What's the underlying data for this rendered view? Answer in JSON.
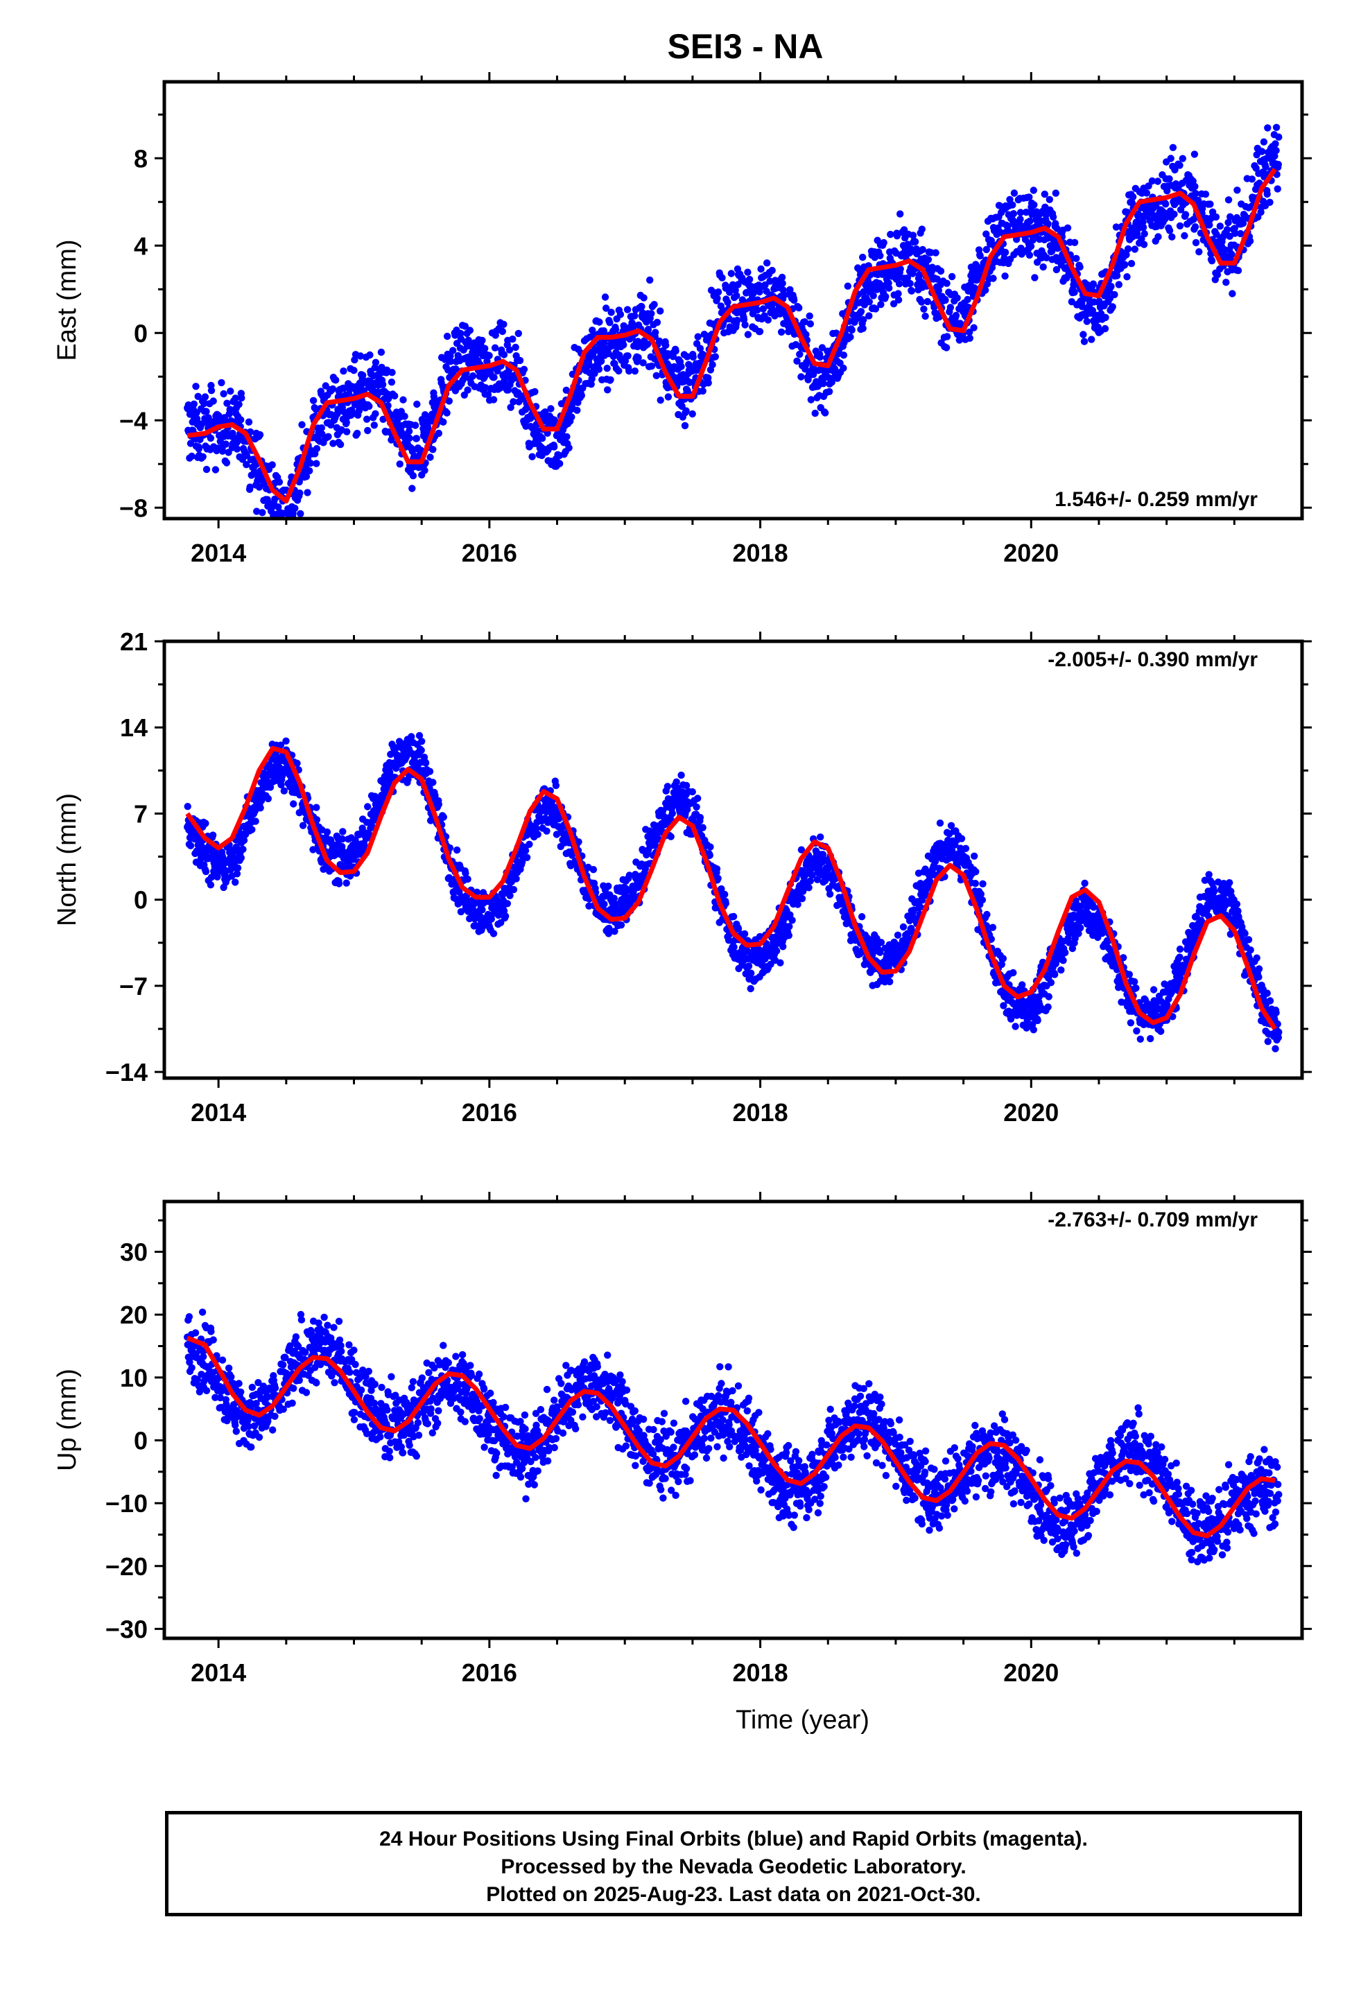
{
  "title": "SEI3 - NA",
  "footer": {
    "line1": "24 Hour Positions Using Final Orbits (blue) and Rapid Orbits (magenta).",
    "line2": "Processed by the Nevada Geodetic Laboratory.",
    "line3": "Plotted on 2025-Aug-23. Last data on 2021-Oct-30."
  },
  "colors": {
    "points": "#0000ff",
    "model": "#ff0000",
    "frame": "#000000"
  },
  "chart_data": [
    {
      "type": "scatter",
      "ylabel": "East (mm)",
      "xlabel": "",
      "xlim": [
        2013.6,
        2022.0
      ],
      "ylim": [
        -8.5,
        11.5
      ],
      "xticks": [
        2014,
        2016,
        2018,
        2020
      ],
      "yticks": [
        -8,
        -4,
        0,
        4,
        8
      ],
      "rate_text": "1.546+/- 0.259 mm/yr",
      "rate_position": "bottom-right",
      "model": {
        "x": [
          2013.77,
          2013.9,
          2014.0,
          2014.1,
          2014.2,
          2014.3,
          2014.4,
          2014.5,
          2014.6,
          2014.7,
          2014.8,
          2014.9,
          2015.0,
          2015.1,
          2015.2,
          2015.3,
          2015.4,
          2015.5,
          2015.6,
          2015.7,
          2015.8,
          2015.9,
          2016.0,
          2016.1,
          2016.2,
          2016.3,
          2016.4,
          2016.5,
          2016.6,
          2016.7,
          2016.8,
          2016.9,
          2017.0,
          2017.1,
          2017.2,
          2017.3,
          2017.4,
          2017.5,
          2017.6,
          2017.7,
          2017.8,
          2017.9,
          2018.0,
          2018.1,
          2018.2,
          2018.3,
          2018.4,
          2018.5,
          2018.6,
          2018.7,
          2018.8,
          2018.9,
          2019.0,
          2019.1,
          2019.2,
          2019.3,
          2019.4,
          2019.5,
          2019.6,
          2019.7,
          2019.8,
          2019.9,
          2020.0,
          2020.1,
          2020.2,
          2020.3,
          2020.4,
          2020.5,
          2020.6,
          2020.7,
          2020.8,
          2020.9,
          2021.0,
          2021.1,
          2021.2,
          2021.3,
          2021.4,
          2021.5,
          2021.6,
          2021.7,
          2021.8
        ],
        "y": [
          -4.7,
          -4.6,
          -4.3,
          -4.2,
          -4.6,
          -5.8,
          -7.2,
          -7.7,
          -6.2,
          -4.2,
          -3.2,
          -3.1,
          -3.0,
          -2.8,
          -3.2,
          -4.6,
          -5.9,
          -5.9,
          -4.2,
          -2.4,
          -1.7,
          -1.6,
          -1.5,
          -1.3,
          -1.7,
          -3.2,
          -4.4,
          -4.4,
          -2.8,
          -0.9,
          -0.2,
          -0.2,
          -0.1,
          0.1,
          -0.3,
          -1.8,
          -2.9,
          -2.9,
          -1.3,
          0.5,
          1.2,
          1.3,
          1.4,
          1.6,
          1.2,
          -0.2,
          -1.4,
          -1.5,
          0.0,
          1.9,
          2.9,
          3.0,
          3.1,
          3.3,
          2.9,
          1.5,
          0.2,
          0.1,
          1.6,
          3.5,
          4.4,
          4.5,
          4.6,
          4.8,
          4.4,
          3.0,
          1.8,
          1.7,
          3.1,
          5.0,
          6.0,
          6.1,
          6.2,
          6.4,
          5.9,
          4.4,
          3.2,
          3.2,
          4.7,
          6.6,
          7.5
        ]
      },
      "points": {
        "seasonal_amplitude": 1.6,
        "noise": 1.2,
        "note_extent": "2013.77-2021.83"
      }
    },
    {
      "type": "scatter",
      "ylabel": "North (mm)",
      "xlabel": "",
      "xlim": [
        2013.6,
        2022.0
      ],
      "ylim": [
        -14.5,
        21.0
      ],
      "xticks": [
        2014,
        2016,
        2018,
        2020
      ],
      "yticks": [
        -14,
        -7,
        0,
        7,
        14,
        21
      ],
      "rate_text": "-2.005+/- 0.390 mm/yr",
      "rate_position": "top-right",
      "model": {
        "x": [
          2013.77,
          2013.9,
          2014.0,
          2014.1,
          2014.2,
          2014.3,
          2014.4,
          2014.5,
          2014.6,
          2014.7,
          2014.8,
          2014.9,
          2015.0,
          2015.1,
          2015.2,
          2015.3,
          2015.4,
          2015.5,
          2015.6,
          2015.7,
          2015.8,
          2015.9,
          2016.0,
          2016.1,
          2016.2,
          2016.3,
          2016.4,
          2016.5,
          2016.6,
          2016.7,
          2016.8,
          2016.9,
          2017.0,
          2017.1,
          2017.2,
          2017.3,
          2017.4,
          2017.5,
          2017.6,
          2017.7,
          2017.8,
          2017.9,
          2018.0,
          2018.1,
          2018.2,
          2018.3,
          2018.4,
          2018.5,
          2018.6,
          2018.7,
          2018.8,
          2018.9,
          2019.0,
          2019.1,
          2019.2,
          2019.3,
          2019.4,
          2019.5,
          2019.6,
          2019.7,
          2019.8,
          2019.9,
          2020.0,
          2020.1,
          2020.2,
          2020.3,
          2020.4,
          2020.5,
          2020.6,
          2020.7,
          2020.8,
          2020.9,
          2021.0,
          2021.1,
          2021.2,
          2021.3,
          2021.4,
          2021.5,
          2021.6,
          2021.7,
          2021.8
        ],
        "y": [
          7.0,
          5.0,
          4.2,
          5.0,
          7.5,
          10.5,
          12.3,
          12.0,
          9.5,
          6.0,
          3.2,
          2.2,
          2.3,
          3.8,
          6.8,
          9.5,
          10.6,
          9.8,
          6.8,
          3.3,
          1.0,
          0.2,
          0.2,
          1.5,
          4.2,
          7.2,
          8.8,
          8.2,
          5.4,
          1.9,
          -0.7,
          -1.6,
          -1.5,
          -0.2,
          2.5,
          5.4,
          6.7,
          6.0,
          3.2,
          -0.3,
          -2.7,
          -3.7,
          -3.6,
          -2.2,
          0.6,
          3.3,
          4.7,
          4.2,
          1.4,
          -2.1,
          -4.7,
          -5.9,
          -5.8,
          -4.2,
          -1.3,
          1.6,
          2.8,
          2.0,
          -0.8,
          -4.3,
          -7.0,
          -7.9,
          -7.5,
          -5.7,
          -2.6,
          0.2,
          0.8,
          -0.2,
          -3.2,
          -6.8,
          -9.2,
          -10.0,
          -9.6,
          -7.7,
          -4.5,
          -1.8,
          -1.3,
          -2.5,
          -5.5,
          -8.8,
          -10.5
        ]
      },
      "points": {
        "seasonal_amplitude": 5.0,
        "noise": 1.4,
        "note_extent": "2013.77-2021.83"
      }
    },
    {
      "type": "scatter",
      "ylabel": "Up (mm)",
      "xlabel": "Time (year)",
      "xlim": [
        2013.6,
        2022.0
      ],
      "ylim": [
        -31.5,
        38.0
      ],
      "xticks": [
        2014,
        2016,
        2018,
        2020
      ],
      "yticks": [
        -30,
        -20,
        -10,
        0,
        10,
        20,
        30
      ],
      "rate_text": "-2.763+/- 0.709 mm/yr",
      "rate_position": "top-right",
      "model": {
        "x": [
          2013.77,
          2013.9,
          2014.0,
          2014.1,
          2014.2,
          2014.3,
          2014.4,
          2014.5,
          2014.6,
          2014.7,
          2014.8,
          2014.9,
          2015.0,
          2015.1,
          2015.2,
          2015.3,
          2015.4,
          2015.5,
          2015.6,
          2015.7,
          2015.8,
          2015.9,
          2016.0,
          2016.1,
          2016.2,
          2016.3,
          2016.4,
          2016.5,
          2016.6,
          2016.7,
          2016.8,
          2016.9,
          2017.0,
          2017.1,
          2017.2,
          2017.3,
          2017.4,
          2017.5,
          2017.6,
          2017.7,
          2017.8,
          2017.9,
          2018.0,
          2018.1,
          2018.2,
          2018.3,
          2018.4,
          2018.5,
          2018.6,
          2018.7,
          2018.8,
          2018.9,
          2019.0,
          2019.1,
          2019.2,
          2019.3,
          2019.4,
          2019.5,
          2019.6,
          2019.7,
          2019.8,
          2019.9,
          2020.0,
          2020.1,
          2020.2,
          2020.3,
          2020.4,
          2020.5,
          2020.6,
          2020.7,
          2020.8,
          2020.9,
          2021.0,
          2021.1,
          2021.2,
          2021.3,
          2021.4,
          2021.5,
          2021.6,
          2021.7,
          2021.8
        ],
        "y": [
          16.3,
          15.2,
          11.5,
          7.5,
          4.8,
          4.0,
          5.5,
          8.5,
          11.5,
          13.2,
          13.0,
          11.0,
          7.8,
          4.5,
          2.0,
          1.5,
          3.0,
          6.0,
          9.0,
          10.6,
          10.3,
          8.2,
          5.0,
          1.8,
          -0.8,
          -1.3,
          0.3,
          3.3,
          6.3,
          7.8,
          7.5,
          5.4,
          2.2,
          -1.0,
          -3.6,
          -4.1,
          -2.5,
          0.5,
          3.5,
          5.0,
          4.8,
          2.7,
          -0.5,
          -3.7,
          -6.3,
          -6.9,
          -5.3,
          -2.3,
          0.7,
          2.3,
          2.0,
          -0.1,
          -3.3,
          -6.6,
          -9.1,
          -9.6,
          -8.1,
          -5.1,
          -2.0,
          -0.5,
          -0.8,
          -2.9,
          -6.1,
          -9.4,
          -11.9,
          -12.4,
          -10.8,
          -7.8,
          -4.8,
          -3.3,
          -3.6,
          -5.7,
          -8.9,
          -12.2,
          -14.7,
          -15.2,
          -13.6,
          -10.6,
          -7.6,
          -6.1,
          -6.4
        ]
      },
      "points": {
        "seasonal_amplitude": 4.8,
        "noise": 4.0,
        "note_extent": "2013.77-2021.83"
      }
    }
  ]
}
